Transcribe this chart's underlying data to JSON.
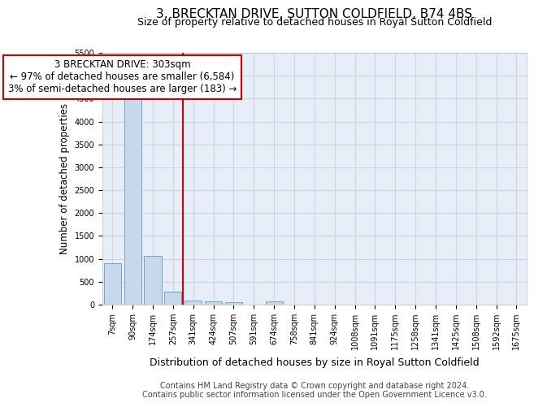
{
  "title": "3, BRECKTAN DRIVE, SUTTON COLDFIELD, B74 4BS",
  "subtitle": "Size of property relative to detached houses in Royal Sutton Coldfield",
  "xlabel": "Distribution of detached houses by size in Royal Sutton Coldfield",
  "ylabel": "Number of detached properties",
  "footer_line1": "Contains HM Land Registry data © Crown copyright and database right 2024.",
  "footer_line2": "Contains public sector information licensed under the Open Government Licence v3.0.",
  "categories": [
    "7sqm",
    "90sqm",
    "174sqm",
    "257sqm",
    "341sqm",
    "424sqm",
    "507sqm",
    "591sqm",
    "674sqm",
    "758sqm",
    "841sqm",
    "924sqm",
    "1008sqm",
    "1091sqm",
    "1175sqm",
    "1258sqm",
    "1341sqm",
    "1425sqm",
    "1508sqm",
    "1592sqm",
    "1675sqm"
  ],
  "values": [
    900,
    4500,
    1060,
    290,
    95,
    75,
    60,
    0,
    65,
    0,
    0,
    0,
    0,
    0,
    0,
    0,
    0,
    0,
    0,
    0,
    0
  ],
  "bar_color": "#c8d8ec",
  "bar_edge_color": "#6699bb",
  "vline_x_index": 3.5,
  "vline_color": "#cc0000",
  "annotation_text": "3 BRECKTAN DRIVE: 303sqm\n← 97% of detached houses are smaller (6,584)\n3% of semi-detached houses are larger (183) →",
  "annotation_box_color": "#ffffff",
  "annotation_box_edge": "#cc0000",
  "ylim": [
    0,
    5500
  ],
  "yticks": [
    0,
    500,
    1000,
    1500,
    2000,
    2500,
    3000,
    3500,
    4000,
    4500,
    5000,
    5500
  ],
  "grid_color": "#c8d4e8",
  "bg_color": "#e8eef8",
  "title_fontsize": 11,
  "subtitle_fontsize": 9,
  "tick_fontsize": 7,
  "ylabel_fontsize": 8.5,
  "xlabel_fontsize": 9,
  "annotation_fontsize": 8.5,
  "footer_fontsize": 7
}
